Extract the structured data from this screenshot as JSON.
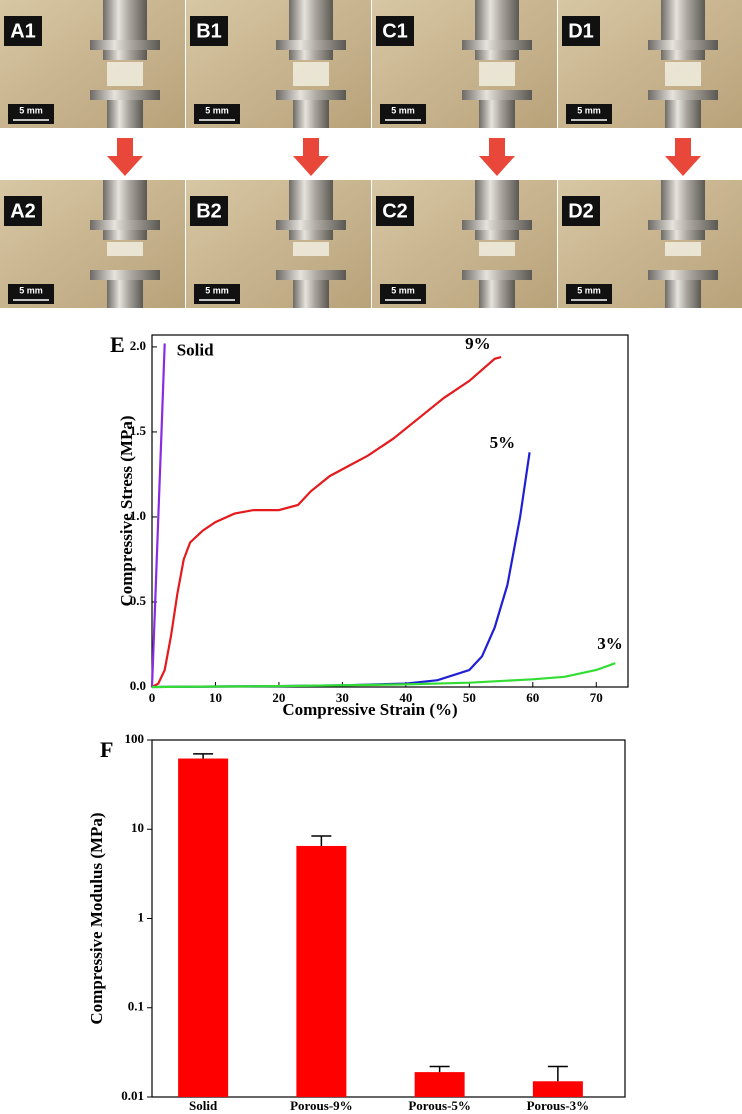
{
  "photos": {
    "panels": [
      {
        "label": "A1",
        "scale_bar": "5 mm"
      },
      {
        "label": "B1",
        "scale_bar": "5 mm"
      },
      {
        "label": "C1",
        "scale_bar": "5 mm"
      },
      {
        "label": "D1",
        "scale_bar": "5 mm"
      },
      {
        "label": "A2",
        "scale_bar": "5 mm"
      },
      {
        "label": "B2",
        "scale_bar": "5 mm"
      },
      {
        "label": "C2",
        "scale_bar": "5 mm"
      },
      {
        "label": "D2",
        "scale_bar": "5 mm"
      }
    ]
  },
  "chart_data": [
    {
      "type": "line",
      "panel_label": "E",
      "xlabel": "Compressive Strain (%)",
      "ylabel": "Compressive Stress (MPa)",
      "xlim": [
        0,
        75
      ],
      "ylim": [
        0,
        2.07
      ],
      "xticks": [
        0,
        10,
        20,
        30,
        40,
        50,
        60,
        70
      ],
      "yticks": [
        {
          "value": 0,
          "label": "0.0"
        },
        0.5,
        {
          "value": 1,
          "label": "1.0"
        },
        1.5,
        {
          "value": 2,
          "label": "2.0"
        }
      ],
      "series": [
        {
          "name": "Solid",
          "color": "#8a2be2",
          "x": [
            0,
            0.5,
            1,
            1.5,
            2
          ],
          "values": [
            0,
            0.5,
            1.0,
            1.5,
            2.02
          ]
        },
        {
          "name": "9%",
          "color": "#e41a1c",
          "x": [
            0,
            1,
            2,
            3,
            4,
            5,
            6,
            8,
            10,
            13,
            16,
            20,
            23,
            25,
            28,
            31,
            34,
            38,
            42,
            46,
            50,
            54,
            55
          ],
          "values": [
            0,
            0.02,
            0.1,
            0.3,
            0.55,
            0.75,
            0.85,
            0.92,
            0.97,
            1.02,
            1.04,
            1.04,
            1.07,
            1.15,
            1.24,
            1.3,
            1.36,
            1.46,
            1.58,
            1.7,
            1.8,
            1.93,
            1.94
          ]
        },
        {
          "name": "5%",
          "color": "#1f1fd6",
          "x": [
            0,
            10,
            20,
            30,
            40,
            45,
            50,
            52,
            54,
            56,
            58,
            59.5
          ],
          "values": [
            0,
            0.003,
            0.005,
            0.01,
            0.02,
            0.04,
            0.1,
            0.18,
            0.35,
            0.6,
            1.0,
            1.38
          ]
        },
        {
          "name": "3%",
          "color": "#33dd33",
          "x": [
            0,
            20,
            40,
            50,
            60,
            65,
            70,
            73
          ],
          "values": [
            0,
            0.005,
            0.015,
            0.025,
            0.045,
            0.06,
            0.1,
            0.14
          ]
        }
      ]
    },
    {
      "type": "bar",
      "panel_label": "F",
      "ylabel": "Compressive Modulus (MPa)",
      "log_y": true,
      "color": "#ff0000",
      "categories": [
        "Solid",
        "Porous-9%",
        "Porous-5%",
        "Porous-3%"
      ],
      "values": [
        62,
        6.5,
        0.019,
        0.015
      ],
      "error": [
        8,
        1.9,
        0.003,
        0.007
      ],
      "ylim": [
        0.01,
        100
      ],
      "yticks": [
        0.01,
        0.1,
        1,
        10,
        100
      ]
    }
  ]
}
